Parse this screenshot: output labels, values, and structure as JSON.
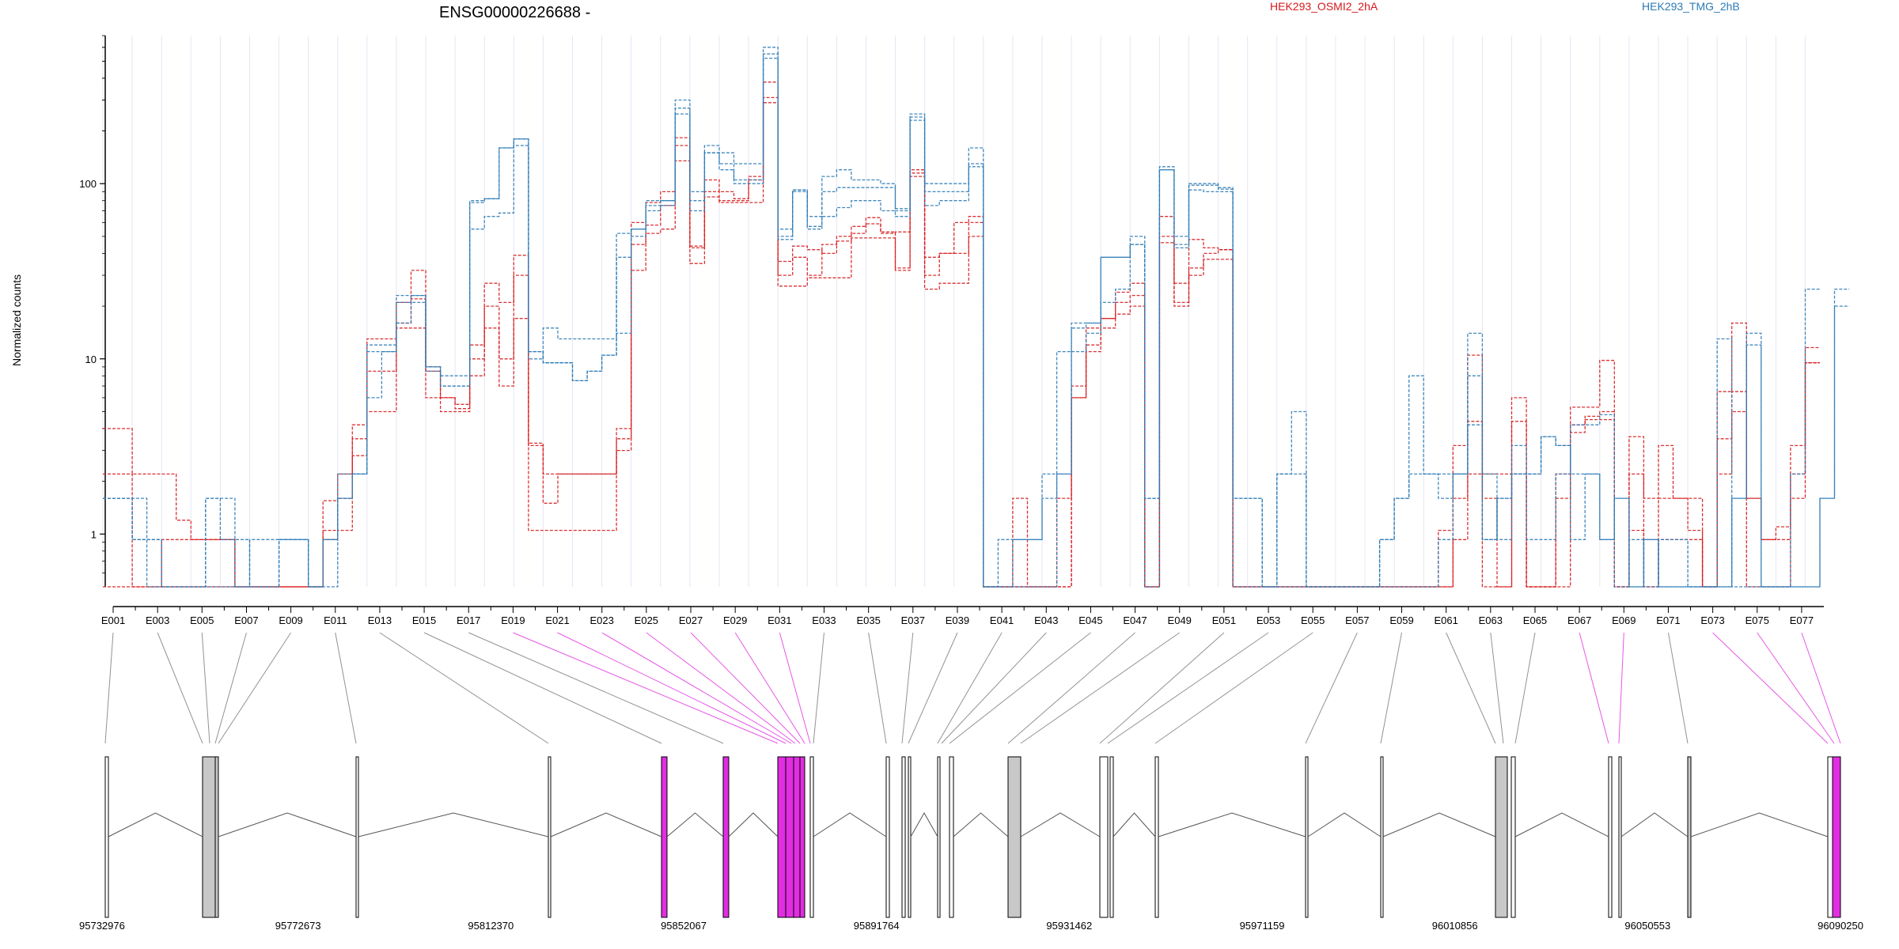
{
  "chart_data": {
    "type": "line",
    "title": "ENSG00000226688 -",
    "ylabel": "Normalized counts",
    "yscale": "log",
    "ylim": [
      0.5,
      700
    ],
    "y_ticks": [
      "1",
      "10",
      "100"
    ],
    "legend": {
      "placement": "top-right",
      "entries": [
        {
          "name": "HEK293_OSMI2_2hA",
          "color": "#d7191c"
        },
        {
          "name": "HEK293_TMG_2hB",
          "color": "#2c7bb6"
        }
      ]
    },
    "exon_labels": [
      "E001",
      "E003",
      "E005",
      "E007",
      "E009",
      "E011",
      "E013",
      "E015",
      "E017",
      "E019",
      "E021",
      "E023",
      "E025",
      "E027",
      "E029",
      "E031",
      "E033",
      "E035",
      "E037",
      "E039",
      "E041",
      "E043",
      "E045",
      "E047",
      "E049",
      "E051",
      "E053",
      "E055",
      "E057",
      "E059",
      "E061",
      "E063",
      "E065",
      "E067",
      "E069",
      "E071",
      "E073",
      "E075",
      "E077"
    ],
    "genomic_coords": [
      "95732976",
      "95772673",
      "95812370",
      "95852067",
      "95891764",
      "95931462",
      "95971159",
      "96010856",
      "96050553",
      "96090250"
    ],
    "colors": {
      "osmi": "#d7191c",
      "tmg": "#2c7bb6",
      "highlight": "#e12ee1",
      "exon": "#c8c8c8"
    },
    "series": [
      {
        "group": "osmi",
        "values": [
          4,
          4,
          2.2,
          2.2,
          2.2,
          1.2,
          0.93,
          0.93,
          0.93,
          0.5,
          0.5,
          0.5,
          0.5,
          0.5,
          0.5,
          1.55,
          2.2,
          4.2,
          13,
          13,
          21,
          32,
          9,
          6,
          5.2,
          12,
          27,
          21,
          39,
          3.3,
          2.2,
          2.2,
          2.2,
          2.2,
          2.2,
          4,
          60,
          78,
          90,
          183,
          44,
          105,
          90,
          82,
          110,
          380,
          36,
          44,
          42,
          40,
          50,
          57,
          64,
          53,
          33,
          115,
          30,
          40,
          40,
          60,
          0.5,
          0.5,
          1.6,
          0.5,
          0.5,
          1.6,
          6,
          15,
          17,
          24,
          27,
          0.5,
          65,
          27,
          48,
          43,
          42,
          0.5,
          0.5,
          0.5,
          0.5,
          0.5,
          0.5,
          0.5,
          0.5,
          0.5,
          0.5,
          0.5,
          0.5,
          0.5,
          0.5,
          1.05,
          3.2,
          10.5,
          2.2,
          2.2,
          6,
          0.5,
          0.5,
          2.2,
          5.3,
          5.3,
          9.8,
          0.5,
          3.6,
          1.6,
          3.2,
          1.6,
          1.6,
          0.5,
          6.5,
          16,
          1.6,
          0.93,
          1.1,
          3.2,
          11.6
        ]
      },
      {
        "group": "osmi",
        "values": [
          2.2,
          2.2,
          0.5,
          0.5,
          0.93,
          0.93,
          0.93,
          0.93,
          0.93,
          0.5,
          0.5,
          0.5,
          0.5,
          0.5,
          0.5,
          1.05,
          1.6,
          3.5,
          8.5,
          8.5,
          16,
          22,
          8.5,
          6,
          5.5,
          10,
          20,
          10,
          30,
          3.2,
          1.5,
          2.2,
          2.2,
          2.2,
          2.2,
          3.5,
          45,
          58,
          75,
          165,
          43,
          84,
          80,
          80,
          105,
          310,
          30,
          38,
          30,
          45,
          47,
          52,
          59,
          52,
          53,
          110,
          38,
          40,
          60,
          65,
          0.5,
          0.5,
          0.5,
          0.5,
          0.5,
          0.5,
          7,
          12,
          17,
          21,
          23,
          0.5,
          46,
          21,
          33,
          40,
          42,
          0.5,
          0.5,
          0.5,
          0.5,
          0.5,
          0.5,
          0.5,
          0.5,
          0.5,
          0.5,
          0.5,
          0.5,
          0.5,
          0.5,
          0.5,
          1.6,
          4.4,
          1.6,
          0.5,
          4.4,
          0.5,
          0.5,
          1.6,
          4.2,
          4.7,
          5,
          0.5,
          2.2,
          0.5,
          1.6,
          1.6,
          1.05,
          0.5,
          3.5,
          6.5,
          1.6,
          0.93,
          0.93,
          2.2,
          9.5
        ]
      },
      {
        "group": "osmi",
        "values": [
          0.5,
          0.5,
          0.5,
          0.5,
          0.5,
          0.5,
          0.5,
          0.5,
          0.5,
          0.5,
          0.5,
          0.5,
          0.5,
          0.5,
          0.5,
          0.93,
          1.05,
          2.8,
          5,
          5,
          15,
          15,
          6,
          5,
          5,
          8,
          15,
          7,
          17,
          1.05,
          1.05,
          1.05,
          1.05,
          1.05,
          1.05,
          3,
          32,
          52,
          55,
          135,
          35,
          90,
          78,
          78,
          78,
          290,
          26,
          26,
          29,
          29,
          29,
          49,
          49,
          49,
          32,
          120,
          25,
          27,
          27,
          50,
          0.5,
          0.5,
          0.5,
          0.5,
          0.5,
          0.5,
          6,
          11,
          15,
          18,
          20,
          0.5,
          50,
          20,
          30,
          37,
          37,
          0.5,
          0.5,
          0.5,
          0.5,
          0.5,
          0.5,
          0.5,
          0.5,
          0.5,
          0.5,
          0.5,
          0.5,
          0.5,
          0.5,
          0.5,
          0.93,
          2.2,
          0.5,
          0.5,
          2.2,
          0.5,
          0.5,
          0.5,
          3.8,
          4.5,
          4.5,
          0.5,
          1.05,
          0.5,
          0.93,
          0.93,
          0.93,
          0.5,
          2.2,
          5,
          0.5,
          0.5,
          0.5,
          1.6,
          9.5
        ]
      },
      {
        "group": "tmg",
        "values": [
          1.6,
          1.6,
          1.6,
          0.5,
          0.5,
          0.5,
          0.5,
          0.5,
          0.5,
          0.5,
          0.93,
          0.93,
          0.93,
          0.93,
          0.5,
          0.93,
          1.6,
          2.2,
          6,
          11,
          16,
          23,
          9,
          8,
          8,
          78,
          82,
          160,
          180,
          10,
          15,
          13,
          13,
          13,
          13,
          14,
          55,
          75,
          80,
          250,
          80,
          150,
          150,
          130,
          130,
          550,
          48,
          92,
          57,
          65,
          73,
          80,
          80,
          70,
          65,
          240,
          75,
          80,
          80,
          125,
          0.5,
          0.5,
          0.5,
          0.5,
          0.5,
          2.2,
          11,
          14,
          21,
          25,
          45,
          0.5,
          120,
          43,
          92,
          90,
          90,
          0.5,
          0.5,
          0.5,
          0.5,
          0.5,
          0.5,
          0.5,
          0.5,
          0.5,
          0.5,
          0.5,
          0.5,
          0.5,
          0.5,
          0.93,
          2.2,
          14,
          2.2,
          0.93,
          3.2,
          0.93,
          0.93,
          2.2,
          4.2,
          4.2,
          4.8,
          0.5,
          0.93,
          0.5,
          0.93,
          0.93,
          0.5,
          0.5,
          13,
          0.5,
          0.5,
          0.5,
          0.5,
          2.2,
          25
        ]
      },
      {
        "group": "tmg",
        "values": [
          1.6,
          1.6,
          0.93,
          0.93,
          0.5,
          0.5,
          0.5,
          1.6,
          0.93,
          0.93,
          0.5,
          0.5,
          0.93,
          0.93,
          0.5,
          0.93,
          2.2,
          2.2,
          12,
          12,
          23,
          23,
          8.5,
          7,
          7,
          55,
          65,
          68,
          165,
          11,
          9.5,
          9.5,
          7.5,
          8.5,
          10.5,
          52,
          55,
          80,
          80,
          300,
          90,
          165,
          120,
          105,
          105,
          600,
          55,
          92,
          65,
          110,
          120,
          105,
          105,
          100,
          72,
          250,
          100,
          100,
          100,
          160,
          0.5,
          0.93,
          0.93,
          0.93,
          1.6,
          2.2,
          16,
          16,
          38,
          38,
          50,
          1.6,
          120,
          50,
          100,
          100,
          95,
          1.6,
          1.6,
          0.5,
          2.2,
          5,
          0.5,
          0.5,
          0.5,
          0.5,
          0.5,
          0.93,
          1.6,
          2.2,
          2.2,
          2.2,
          2.2,
          8,
          0.93,
          1.6,
          2.2,
          2.2,
          3.6,
          3.2,
          2.2,
          2.2,
          0.93,
          1.6,
          0.5,
          0.93,
          0.5,
          0.5,
          0.5,
          0.5,
          0.5,
          1.6,
          14,
          0.5,
          0.5,
          0.5,
          0.5,
          1.6,
          25
        ]
      },
      {
        "group": "tmg",
        "values": [
          1.6,
          1.6,
          0.93,
          0.93,
          0.5,
          0.5,
          0.5,
          1.6,
          1.6,
          0.5,
          0.5,
          0.5,
          0.93,
          0.93,
          0.5,
          0.5,
          1.6,
          2.2,
          11,
          11,
          21,
          21,
          9,
          7,
          7,
          80,
          82,
          160,
          180,
          11,
          9.5,
          9.5,
          7.5,
          8.5,
          10.5,
          38,
          50,
          70,
          75,
          270,
          70,
          150,
          130,
          100,
          100,
          520,
          50,
          90,
          55,
          90,
          95,
          95,
          95,
          95,
          70,
          230,
          90,
          90,
          90,
          130,
          0.5,
          0.5,
          0.93,
          0.93,
          2.2,
          11,
          15,
          16,
          38,
          38,
          45,
          1.6,
          125,
          45,
          98,
          98,
          93,
          1.6,
          1.6,
          0.5,
          2.2,
          2.2,
          0.5,
          0.5,
          0.5,
          0.5,
          0.5,
          0.93,
          1.6,
          8,
          2.2,
          1.6,
          2.2,
          4.2,
          0.93,
          1.6,
          2.2,
          2.2,
          3.6,
          3.2,
          0.93,
          2.2,
          0.93,
          1.6,
          0.5,
          0.93,
          0.5,
          0.5,
          0.5,
          0.5,
          0.5,
          1.6,
          12,
          0.5,
          0.5,
          0.5,
          0.5,
          1.6,
          20
        ]
      }
    ],
    "highlighted_exons": [
      30,
      31,
      32,
      33,
      34,
      35,
      36,
      37,
      38,
      39,
      40,
      41,
      42,
      43,
      44,
      45,
      46
    ]
  }
}
